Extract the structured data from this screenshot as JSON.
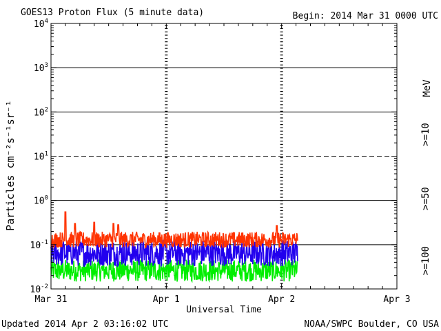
{
  "chart_data": {
    "type": "line",
    "title": "GOES13 Proton Flux (5 minute data)",
    "begin_label": "Begin: 2014 Mar 31 0000 UTC",
    "xlabel": "Universal Time",
    "ylabel": "Particles cm⁻²s⁻¹sr⁻¹",
    "yscale": "log",
    "ylim": [
      0.01,
      10000
    ],
    "xlim_hours": [
      0,
      72
    ],
    "y_ticks": [
      {
        "base": "10",
        "exp": "-2",
        "value": 0.01
      },
      {
        "base": "10",
        "exp": "-1",
        "value": 0.1
      },
      {
        "base": "10",
        "exp": "0",
        "value": 1
      },
      {
        "base": "10",
        "exp": "1",
        "value": 10
      },
      {
        "base": "10",
        "exp": "2",
        "value": 100
      },
      {
        "base": "10",
        "exp": "3",
        "value": 1000
      },
      {
        "base": "10",
        "exp": "4",
        "value": 10000
      }
    ],
    "x_ticks": [
      {
        "label": "Mar 31",
        "hour": 0
      },
      {
        "label": "Apr 1",
        "hour": 24
      },
      {
        "label": "Apr 2",
        "hour": 48
      },
      {
        "label": "Apr 3",
        "hour": 72
      }
    ],
    "solid_gridlines": [
      0.1,
      1,
      100,
      1000
    ],
    "dashed_gridlines": [
      10
    ],
    "data_end_hour": 51.3,
    "series": [
      {
        "name": ">=10",
        "color": "#ff3300",
        "baseline": 0.13,
        "spread": 0.18,
        "spikes": [
          [
            3,
            0.55
          ],
          [
            5,
            0.3
          ],
          [
            9,
            0.32
          ],
          [
            13,
            0.3
          ],
          [
            14,
            0.28
          ],
          [
            47,
            0.27
          ]
        ]
      },
      {
        "name": ">=50",
        "color": "#2200ee",
        "baseline": 0.065,
        "spread": 0.3,
        "spikes": []
      },
      {
        "name": ">=100",
        "color": "#00ee00",
        "baseline": 0.026,
        "spread": 0.25,
        "spikes": []
      }
    ],
    "legend": {
      "labels": [
        ">=10",
        ">=50",
        ">=100"
      ],
      "unit": "MeV",
      "position": "right"
    }
  },
  "footer": {
    "updated": "Updated 2014 Apr  2 03:16:02 UTC",
    "credit": "NOAA/SWPC Boulder, CO USA"
  }
}
